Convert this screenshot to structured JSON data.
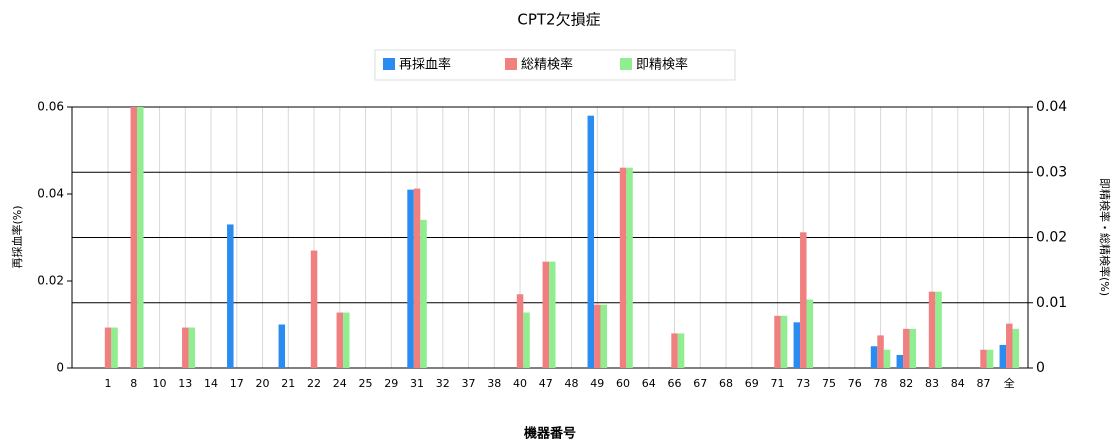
{
  "chart_data": {
    "type": "bar",
    "title": "CPT2欠損症",
    "x_label": "機器番号",
    "y_label": "再採血率(%)",
    "y2_label": "即精検率・総精検率(%)",
    "categories": [
      "1",
      "8",
      "10",
      "13",
      "14",
      "17",
      "20",
      "21",
      "22",
      "24",
      "25",
      "29",
      "31",
      "32",
      "37",
      "38",
      "40",
      "47",
      "48",
      "49",
      "60",
      "64",
      "66",
      "67",
      "68",
      "69",
      "71",
      "73",
      "75",
      "76",
      "78",
      "82",
      "83",
      "84",
      "87",
      "全"
    ],
    "series": [
      {
        "name": "再採血率",
        "color": "#2a8cf0",
        "axis": "y",
        "values": [
          0,
          0,
          0,
          0,
          0,
          0.033,
          0,
          0.01,
          0,
          0,
          0,
          0,
          0.041,
          0,
          0,
          0,
          0,
          0,
          0,
          0.058,
          0,
          0,
          0,
          0,
          0,
          0,
          0,
          0.0105,
          0,
          0,
          0.005,
          0.003,
          0,
          0,
          0,
          0.0053
        ]
      },
      {
        "name": "総精検率",
        "color": "#f08080",
        "axis": "y2",
        "values": [
          0.0062,
          0.04,
          0,
          0.0062,
          0,
          0,
          0,
          0,
          0.018,
          0.0085,
          0,
          0,
          0.0275,
          0,
          0,
          0,
          0.0113,
          0.0163,
          0,
          0.0097,
          0.0307,
          0,
          0.0053,
          0,
          0,
          0,
          0.008,
          0.0208,
          0,
          0,
          0.005,
          0.006,
          0.0117,
          0,
          0.0028,
          0.0068
        ]
      },
      {
        "name": "即精検率",
        "color": "#90ee90",
        "axis": "y2",
        "values": [
          0.0062,
          0.04,
          0,
          0.0062,
          0,
          0,
          0,
          0,
          0,
          0.0085,
          0,
          0,
          0.0227,
          0,
          0,
          0,
          0.0085,
          0.0163,
          0,
          0.0097,
          0.0307,
          0,
          0.0053,
          0,
          0,
          0,
          0.008,
          0.0105,
          0,
          0,
          0.0028,
          0.006,
          0.0117,
          0,
          0.0028,
          0.006
        ]
      }
    ],
    "ylim": [
      0,
      0.06
    ],
    "yticks": [
      0,
      0.02,
      0.04,
      0.06
    ],
    "y2lim": [
      0,
      0.04
    ],
    "y2ticks": [
      0,
      0.01,
      0.02,
      0.03,
      0.04
    ],
    "grid": true,
    "legend": "top"
  }
}
